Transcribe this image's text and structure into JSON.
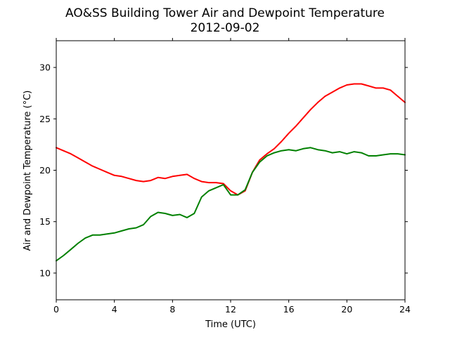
{
  "chart_data": {
    "type": "line",
    "title": "AO&SS Building Tower Air and Dewpoint Temperature",
    "subtitle": "2012-09-02",
    "xlabel": "Time (UTC)",
    "ylabel": "Air and Dewpoint Temperature (°C)",
    "xlim": [
      0,
      24
    ],
    "ylim": [
      7.4,
      32.6
    ],
    "xticks": [
      0,
      4,
      8,
      12,
      16,
      20,
      24
    ],
    "yticks": [
      10,
      15,
      20,
      25,
      30
    ],
    "grid": false,
    "legend": "none",
    "series": [
      {
        "color": "#ff0000",
        "x": [
          0,
          0.5,
          1,
          1.5,
          2,
          2.5,
          3,
          3.5,
          4,
          4.5,
          5,
          5.5,
          6,
          6.5,
          7,
          7.5,
          8,
          8.5,
          9,
          9.5,
          10,
          10.5,
          11,
          11.5,
          12,
          12.5,
          13,
          13.5,
          14,
          14.5,
          15,
          15.5,
          16,
          16.5,
          17,
          17.5,
          18,
          18.5,
          19,
          19.5,
          20,
          20.5,
          21,
          21.5,
          22,
          22.5,
          23,
          23.5,
          24
        ],
        "y": [
          22.2,
          21.9,
          21.6,
          21.2,
          20.8,
          20.4,
          20.1,
          19.8,
          19.5,
          19.4,
          19.2,
          19.0,
          18.9,
          19.0,
          19.3,
          19.2,
          19.4,
          19.5,
          19.6,
          19.2,
          18.9,
          18.8,
          18.8,
          18.7,
          18.0,
          17.6,
          18.0,
          19.8,
          21.0,
          21.6,
          22.1,
          22.8,
          23.6,
          24.3,
          25.1,
          25.9,
          26.6,
          27.2,
          27.6,
          28.0,
          28.3,
          28.4,
          28.4,
          28.2,
          28.0,
          28.0,
          27.8,
          27.2,
          26.6
        ]
      },
      {
        "color": "#008000",
        "x": [
          0,
          0.5,
          1,
          1.5,
          2,
          2.5,
          3,
          3.5,
          4,
          4.5,
          5,
          5.5,
          6,
          6.5,
          7,
          7.5,
          8,
          8.5,
          9,
          9.5,
          10,
          10.5,
          11,
          11.5,
          12,
          12.5,
          13,
          13.5,
          14,
          14.5,
          15,
          15.5,
          16,
          16.5,
          17,
          17.5,
          18,
          18.5,
          19,
          19.5,
          20,
          20.5,
          21,
          21.5,
          22,
          22.5,
          23,
          23.5,
          24
        ],
        "y": [
          11.2,
          11.7,
          12.3,
          12.9,
          13.4,
          13.7,
          13.7,
          13.8,
          13.9,
          14.1,
          14.3,
          14.4,
          14.7,
          15.5,
          15.9,
          15.8,
          15.6,
          15.7,
          15.4,
          15.8,
          17.4,
          18.0,
          18.3,
          18.6,
          17.6,
          17.6,
          18.1,
          19.8,
          20.8,
          21.4,
          21.7,
          21.9,
          22.0,
          21.9,
          22.1,
          22.2,
          22.0,
          21.9,
          21.7,
          21.8,
          21.6,
          21.8,
          21.7,
          21.4,
          21.4,
          21.5,
          21.6,
          21.6,
          21.5
        ]
      }
    ]
  }
}
